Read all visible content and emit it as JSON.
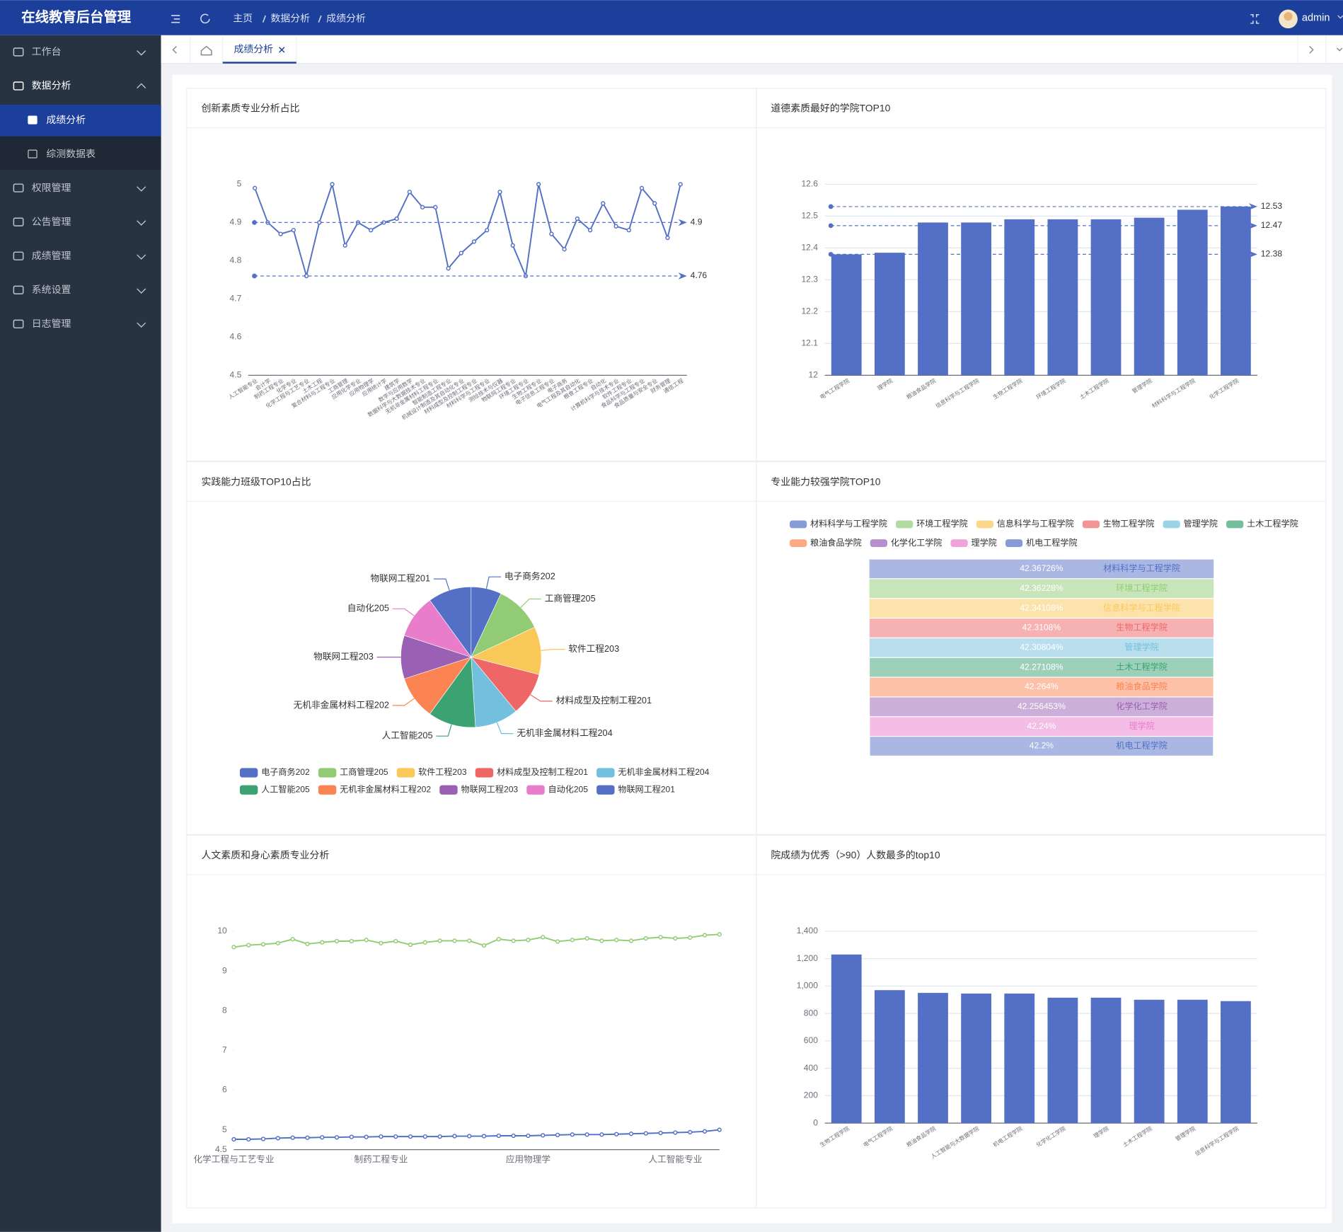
{
  "header": {
    "title": "在线教育后台管理",
    "breadcrumb": [
      "主页",
      "数据分析",
      "成绩分析"
    ],
    "user": "admin"
  },
  "sidebar": {
    "items": [
      {
        "label": "工作台"
      },
      {
        "label": "数据分析",
        "children": [
          "成绩分析",
          "综测数据表"
        ]
      },
      {
        "label": "权限管理"
      },
      {
        "label": "公告管理"
      },
      {
        "label": "成绩管理"
      },
      {
        "label": "系统设置"
      },
      {
        "label": "日志管理"
      }
    ]
  },
  "tabs": {
    "active": "成绩分析"
  },
  "chart_data": [
    {
      "type": "line",
      "title": "创新素质专业分析占比",
      "categories": [
        "人工智能专业",
        "会计学",
        "制药工程专业",
        "化学专业",
        "化学工程与工艺专业",
        "土木工程",
        "复合材料与工程专业",
        "工商管理",
        "应用化学专业",
        "应用物理学",
        "应用统计学",
        "建筑学",
        "数学与应用数学",
        "数据科学与大数据技术专业",
        "无机非金属材料工程专业",
        "智能制造工程专业",
        "机械设计制造及其自动化专业",
        "材料成型及控制工程专业",
        "材料科学与工程专业",
        "测绘技术与仪器",
        "物联网工程专业",
        "环境工程专业",
        "生物工程专业",
        "电子信息工程专业",
        "电子商务",
        "电气工程及其自动化",
        "粮食工程专业",
        "自动化",
        "计算机科学与技术专业",
        "软件工程专业",
        "食品科学与工程专业",
        "食品质量与安全专业",
        "财务管理",
        "通信工程"
      ],
      "values": [
        4.99,
        4.9,
        4.87,
        4.88,
        4.76,
        4.9,
        5,
        4.84,
        4.9,
        4.88,
        4.9,
        4.91,
        4.98,
        4.94,
        4.94,
        4.78,
        4.82,
        4.85,
        4.88,
        4.98,
        4.84,
        4.76,
        5,
        4.87,
        4.83,
        4.91,
        4.88,
        4.95,
        4.89,
        4.88,
        4.99,
        4.95,
        4.86,
        5
      ],
      "color": "#5470c6",
      "ylim": [
        4.5,
        5
      ],
      "yticks": [
        4.5,
        4.6,
        4.7,
        4.8,
        4.9,
        5
      ],
      "grid": false,
      "mark_lines": [
        4.9,
        4.76
      ]
    },
    {
      "type": "bar",
      "title": "道德素质最好的学院TOP10",
      "categories": [
        "电气工程学院",
        "理学院",
        "粮油食品学院",
        "信息科学与工程学院",
        "生物工程学院",
        "环境工程学院",
        "土木工程学院",
        "管理学院",
        "材料科学与工程学院",
        "化学工程学院"
      ],
      "values": [
        12.38,
        12.385,
        12.48,
        12.48,
        12.49,
        12.49,
        12.49,
        12.495,
        12.52,
        12.53
      ],
      "color": "#5470c6",
      "ylim": [
        12,
        12.6
      ],
      "yticks": [
        12,
        12.1,
        12.2,
        12.3,
        12.4,
        12.5,
        12.6
      ],
      "grid": true,
      "mark_lines": [
        12.53,
        12.47,
        12.38
      ]
    },
    {
      "type": "pie",
      "title": "实践能力班级TOP10占比",
      "categories": [
        "电子商务202",
        "工商管理205",
        "软件工程203",
        "材料成型及控制工程201",
        "无机非金属材料工程204",
        "人工智能205",
        "无机非金属材料工程202",
        "物联网工程203",
        "自动化205",
        "物联网工程201"
      ],
      "values": [
        7,
        11,
        11,
        10,
        10,
        11,
        10,
        10,
        10,
        10
      ],
      "colors": [
        "#5470c6",
        "#91cc75",
        "#fac858",
        "#ee6666",
        "#73c0de",
        "#3ba272",
        "#fc8452",
        "#9a60b4",
        "#ea7ccc",
        "#5470c6"
      ]
    },
    {
      "type": "funnel",
      "title": "专业能力较强学院TOP10",
      "categories": [
        "材料科学与工程学院",
        "环境工程学院",
        "信息科学与工程学院",
        "生物工程学院",
        "管理学院",
        "土木工程学院",
        "粮油食品学院",
        "化学化工学院",
        "理学院",
        "机电工程学院"
      ],
      "values": [
        42.36726,
        42.36228,
        42.34108,
        42.3108,
        42.30804,
        42.27108,
        42.264,
        42.256453,
        42.24,
        42.2
      ],
      "value_labels": [
        "42.36726%",
        "42.36228%",
        "42.34108%",
        "42.3108%",
        "42.30804%",
        "42.27108%",
        "42.264%",
        "42.256453%",
        "42.24%",
        "42.2%"
      ],
      "colors": [
        "#5470c6",
        "#91cc75",
        "#fac858",
        "#ee6666",
        "#73c0de",
        "#3ba272",
        "#fc8452",
        "#9a60b4",
        "#ea7ccc",
        "#5470c6"
      ]
    },
    {
      "type": "line",
      "title": "人文素质和身心素质专业分析",
      "categories": [
        "化学工程与工艺专业",
        null,
        null,
        null,
        null,
        null,
        null,
        null,
        null,
        null,
        "制药工程专业",
        null,
        null,
        null,
        null,
        null,
        null,
        null,
        null,
        null,
        "应用物理学",
        null,
        null,
        null,
        null,
        null,
        null,
        null,
        null,
        null,
        "人工智能专业",
        null,
        null,
        null
      ],
      "series": [
        {
          "color": "#91cc75",
          "values": [
            9.6,
            9.65,
            9.67,
            9.7,
            9.8,
            9.68,
            9.72,
            9.75,
            9.75,
            9.78,
            9.7,
            9.75,
            9.66,
            9.72,
            9.76,
            9.76,
            9.76,
            9.64,
            9.8,
            9.76,
            9.78,
            9.85,
            9.74,
            9.78,
            9.82,
            9.76,
            9.78,
            9.76,
            9.82,
            9.85,
            9.82,
            9.84,
            9.9,
            9.92
          ]
        },
        {
          "color": "#5470c6",
          "values": [
            4.76,
            4.76,
            4.77,
            4.79,
            4.8,
            4.8,
            4.81,
            4.81,
            4.82,
            4.82,
            4.83,
            4.83,
            4.83,
            4.83,
            4.83,
            4.84,
            4.84,
            4.84,
            4.85,
            4.85,
            4.85,
            4.86,
            4.87,
            4.88,
            4.88,
            4.88,
            4.89,
            4.9,
            4.91,
            4.92,
            4.93,
            4.94,
            4.96,
            5
          ]
        }
      ],
      "ylim": [
        4.5,
        10
      ],
      "yticks": [
        4.5,
        5,
        6,
        7,
        8,
        9,
        10
      ],
      "grid": false
    },
    {
      "type": "bar",
      "title": "院成绩为优秀（>90）人数最多的top10",
      "categories": [
        "生物工程学院",
        "电气工程学院",
        "粮油食品学院",
        "人工智能与大数据学院",
        "机电工程学院",
        "化学化工学院",
        "理学院",
        "土木工程学院",
        "管理学院",
        "信息科学与工程学院"
      ],
      "values": [
        1230,
        970,
        950,
        945,
        945,
        915,
        915,
        900,
        900,
        890
      ],
      "color": "#5470c6",
      "ylim": [
        0,
        1400
      ],
      "yticks": [
        0,
        200,
        400,
        600,
        800,
        {
          "value": 1000,
          "label": "1,000"
        },
        {
          "value": 1200,
          "label": "1,200"
        },
        {
          "value": 1400,
          "label": "1,400"
        }
      ],
      "grid": true
    }
  ]
}
